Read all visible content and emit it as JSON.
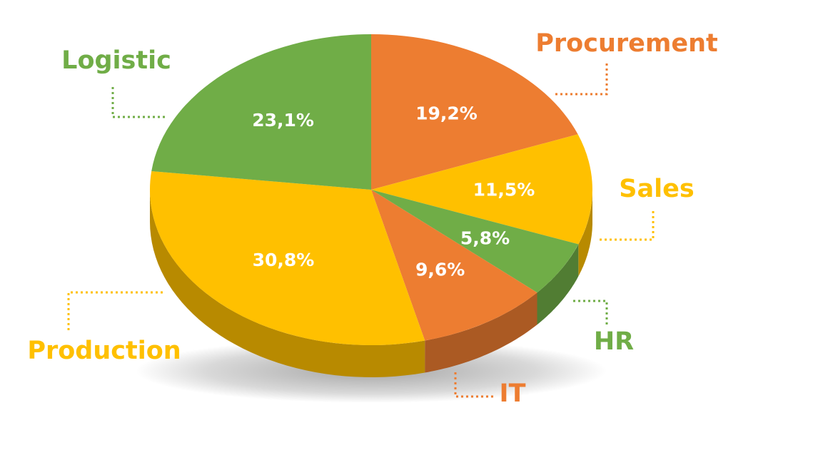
{
  "chart_data": {
    "type": "pie",
    "style": "3d",
    "slices": [
      {
        "label": "Procurement",
        "value": 19.2,
        "value_label": "19,2%",
        "color": "#ED7D31"
      },
      {
        "label": "Sales",
        "value": 11.5,
        "value_label": "11,5%",
        "color": "#FFC000"
      },
      {
        "label": "HR",
        "value": 5.8,
        "value_label": "5,8%",
        "color": "#70AD47"
      },
      {
        "label": "IT",
        "value": 9.6,
        "value_label": "9,6%",
        "color": "#ED7D31"
      },
      {
        "label": "Production",
        "value": 30.8,
        "value_label": "30,8%",
        "color": "#FFC000"
      },
      {
        "label": "Logistic",
        "value": 23.1,
        "value_label": "23,1%",
        "color": "#70AD47"
      }
    ],
    "start_angle_deg": 0,
    "direction": "clockwise",
    "label_style": "external category labels with dotted leader lines; percentages inside slices"
  }
}
